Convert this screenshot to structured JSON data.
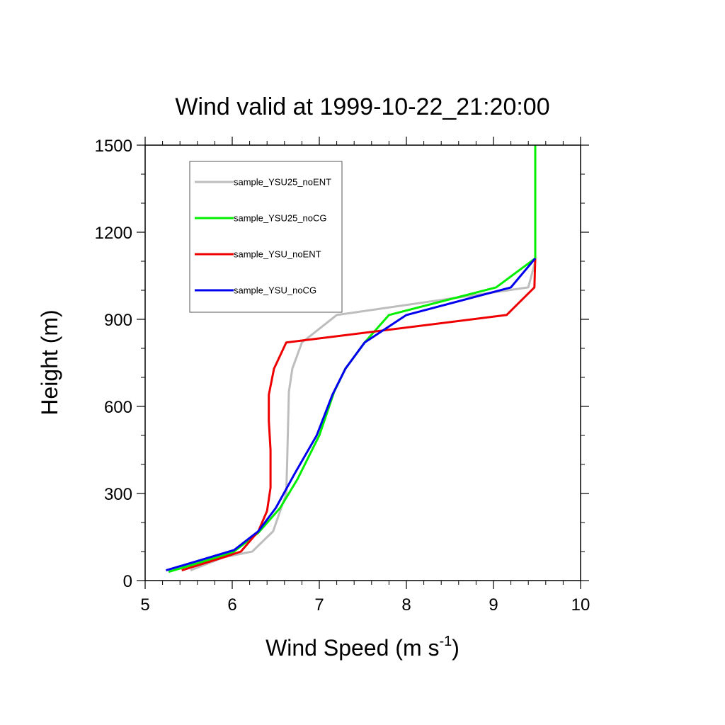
{
  "chart_data": {
    "type": "line",
    "title": "Wind valid at 1999-10-22_21:20:00",
    "xlabel": {
      "main": "Wind Speed (m s",
      "superscript": "-1",
      "close": ")"
    },
    "ylabel": "Height (m)",
    "xlim": [
      5,
      10
    ],
    "ylim": [
      0,
      1500
    ],
    "x_ticks": [
      5,
      6,
      7,
      8,
      9,
      10
    ],
    "x_tick_labels": [
      "5",
      "6",
      "7",
      "8",
      "9",
      "10"
    ],
    "y_ticks": [
      0,
      300,
      600,
      900,
      1200,
      1500
    ],
    "y_tick_labels": [
      "0",
      "300",
      "600",
      "900",
      "1200",
      "1500"
    ],
    "grid": false,
    "legend_position": "top-left",
    "series": [
      {
        "name": "sample_YSU25_noENT",
        "color": "#bdbdbd",
        "points": [
          [
            5.52,
            35
          ],
          [
            5.9,
            80
          ],
          [
            6.23,
            100
          ],
          [
            6.47,
            170
          ],
          [
            6.62,
            300
          ],
          [
            6.63,
            400
          ],
          [
            6.65,
            650
          ],
          [
            6.69,
            730
          ],
          [
            6.8,
            820
          ],
          [
            7.2,
            915
          ],
          [
            9.4,
            1010
          ],
          [
            9.48,
            1100
          ],
          [
            9.48,
            1300
          ],
          [
            9.48,
            1500
          ]
        ]
      },
      {
        "name": "sample_YSU25_noCG",
        "color": "#00ee00",
        "points": [
          [
            5.27,
            30
          ],
          [
            6.0,
            95
          ],
          [
            6.3,
            165
          ],
          [
            6.55,
            250
          ],
          [
            6.75,
            350
          ],
          [
            7.0,
            500
          ],
          [
            7.17,
            650
          ],
          [
            7.3,
            730
          ],
          [
            7.52,
            820
          ],
          [
            7.8,
            915
          ],
          [
            9.03,
            1010
          ],
          [
            9.48,
            1110
          ],
          [
            9.48,
            1300
          ],
          [
            9.48,
            1500
          ]
        ]
      },
      {
        "name": "sample_YSU_noENT",
        "color": "#ee0000",
        "points": [
          [
            5.42,
            35
          ],
          [
            5.9,
            80
          ],
          [
            6.1,
            100
          ],
          [
            6.3,
            170
          ],
          [
            6.4,
            240
          ],
          [
            6.44,
            320
          ],
          [
            6.44,
            450
          ],
          [
            6.42,
            550
          ],
          [
            6.42,
            640
          ],
          [
            6.48,
            730
          ],
          [
            6.62,
            820
          ],
          [
            9.15,
            915
          ],
          [
            9.47,
            1010
          ],
          [
            9.48,
            1110
          ]
        ]
      },
      {
        "name": "sample_YSU_noCG",
        "color": "#0000ee",
        "points": [
          [
            5.24,
            35
          ],
          [
            6.02,
            105
          ],
          [
            6.3,
            170
          ],
          [
            6.5,
            250
          ],
          [
            6.72,
            370
          ],
          [
            6.97,
            500
          ],
          [
            7.15,
            640
          ],
          [
            7.3,
            730
          ],
          [
            7.52,
            820
          ],
          [
            8.0,
            915
          ],
          [
            9.2,
            1010
          ],
          [
            9.48,
            1110
          ]
        ]
      }
    ]
  }
}
